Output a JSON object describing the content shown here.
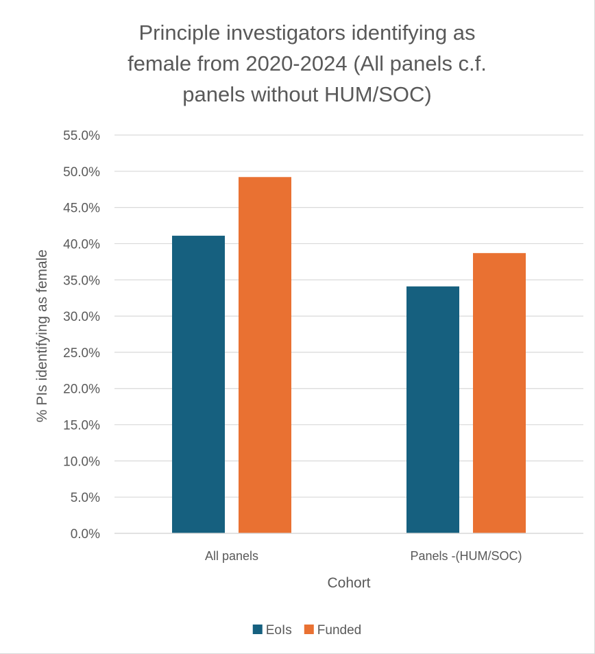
{
  "chart_data": {
    "type": "bar",
    "title_lines": [
      "Principle investigators identifying as",
      "female from 2020-2024 (All panels c.f.",
      "panels without HUM/SOC)"
    ],
    "xlabel": "Cohort",
    "ylabel": "% PIs identifying as female",
    "categories": [
      "All panels",
      "Panels -(HUM/SOC)"
    ],
    "series": [
      {
        "name": "EoIs",
        "color": "#16607f",
        "values": [
          41.1,
          34.1
        ]
      },
      {
        "name": "Funded",
        "color": "#e97132",
        "values": [
          49.2,
          38.7
        ]
      }
    ],
    "ylim": [
      0,
      55
    ],
    "y_tick_step": 5,
    "y_tick_labels": [
      "0.0%",
      "5.0%",
      "10.0%",
      "15.0%",
      "20.0%",
      "25.0%",
      "30.0%",
      "35.0%",
      "40.0%",
      "45.0%",
      "50.0%",
      "55.0%"
    ],
    "grid": true,
    "legend_position": "bottom"
  }
}
